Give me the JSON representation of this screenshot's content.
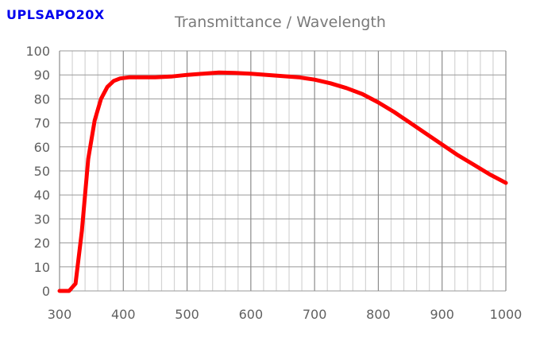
{
  "header": {
    "model_label": "UPLSAPO20X"
  },
  "chart_data": {
    "type": "line",
    "title": "Transmittance / Wavelength",
    "xlabel": "",
    "ylabel": "",
    "xlim": [
      300,
      1000
    ],
    "ylim": [
      0,
      100
    ],
    "x_ticks": [
      300,
      400,
      500,
      600,
      700,
      800,
      900,
      1000
    ],
    "y_ticks": [
      0,
      10,
      20,
      30,
      40,
      50,
      60,
      70,
      80,
      90,
      100
    ],
    "grid": true,
    "legend": "none",
    "series": [
      {
        "color": "#ff0000",
        "x": [
          300,
          315,
          325,
          335,
          345,
          355,
          365,
          375,
          385,
          395,
          410,
          425,
          450,
          475,
          500,
          525,
          550,
          575,
          600,
          625,
          650,
          675,
          700,
          725,
          750,
          775,
          800,
          825,
          850,
          875,
          900,
          925,
          950,
          975,
          1000
        ],
        "y": [
          0,
          0,
          3,
          25,
          55,
          71,
          80,
          85,
          87.5,
          88.5,
          89,
          89,
          89,
          89.3,
          90,
          90.5,
          91,
          90.8,
          90.5,
          90,
          89.5,
          89,
          88,
          86.5,
          84.5,
          82,
          78.5,
          74.5,
          70,
          65.5,
          61,
          56.5,
          52.5,
          48.5,
          45
        ]
      }
    ]
  }
}
